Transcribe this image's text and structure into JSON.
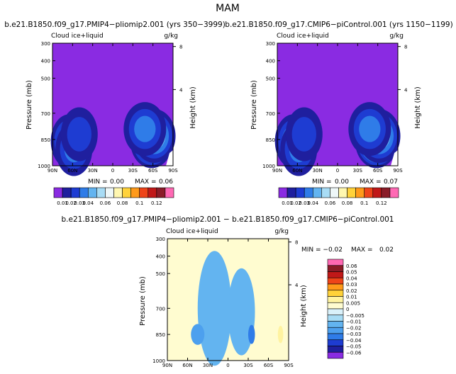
{
  "figure_title": "MAM",
  "chart_data": [
    {
      "type": "heatmap",
      "title": "b.e21.B1850.f09_g17.PMIP4−pliomip2.001  (yrs 350−3999)",
      "left_string": "Cloud ice+liquid",
      "right_string": "g/kg",
      "ylabel": "Pressure (mb)",
      "ylabel_right": "Height (km)",
      "x_tick_labels": [
        "90N",
        "60N",
        "30N",
        "0",
        "30S",
        "60S",
        "90S"
      ],
      "x_tick_values": [
        90,
        60,
        30,
        0,
        -30,
        -60,
        -90
      ],
      "xlim": [
        90,
        -90
      ],
      "y_tick_labels": [
        "300",
        "400",
        "500",
        "700",
        "850",
        "1000"
      ],
      "y_tick_values": [
        300,
        400,
        500,
        700,
        850,
        1000
      ],
      "ylim": [
        300,
        1000
      ],
      "right_tick_labels": [
        "8",
        "4"
      ],
      "right_tick_values": [
        8,
        4
      ],
      "min_label": "MIN =",
      "min_value": "0.00",
      "max_label": "MAX =",
      "max_value": "0.06",
      "blobs": [
        {
          "lat": 65,
          "p": 860,
          "level": 4
        },
        {
          "lat": 58,
          "p": 905,
          "level": 3
        },
        {
          "lat": 50,
          "p": 820,
          "level": 2
        },
        {
          "lat": -58,
          "p": 860,
          "level": 7
        },
        {
          "lat": -62,
          "p": 830,
          "level": 5
        },
        {
          "lat": -48,
          "p": 790,
          "level": 3
        }
      ],
      "colorbar": {
        "colors": [
          "#8a2be2",
          "#1f1f9e",
          "#1e3cd2",
          "#2f7ce8",
          "#63b4f0",
          "#a8dcf5",
          "#eef7f8",
          "#fff7b0",
          "#ffd23a",
          "#ff9a1a",
          "#ee4419",
          "#c01818",
          "#8a1c28",
          "#ff69b4"
        ],
        "labels": [
          "0.01",
          "0.02",
          "0.03",
          "0.04",
          "0.06",
          "0.08",
          "0.1",
          "0.12"
        ],
        "label_colors": [
          0,
          1,
          2,
          3,
          5,
          7,
          9,
          11
        ]
      }
    },
    {
      "type": "heatmap",
      "title": "b.e21.B1850.f09_g17.CMIP6−piControl.001  (yrs 1150−1199)",
      "left_string": "Cloud ice+liquid",
      "right_string": "g/kg",
      "ylabel": "Pressure (mb)",
      "ylabel_right": "Height (km)",
      "x_tick_labels": [
        "90N",
        "60N",
        "30N",
        "0",
        "30S",
        "60S",
        "90S"
      ],
      "x_tick_values": [
        90,
        60,
        30,
        0,
        -30,
        -60,
        -90
      ],
      "xlim": [
        90,
        -90
      ],
      "y_tick_labels": [
        "300",
        "400",
        "500",
        "700",
        "850",
        "1000"
      ],
      "y_tick_values": [
        300,
        400,
        500,
        700,
        850,
        1000
      ],
      "ylim": [
        300,
        1000
      ],
      "right_tick_labels": [
        "8",
        "4"
      ],
      "right_tick_values": [
        8,
        4
      ],
      "min_label": "MIN =",
      "min_value": "0.00",
      "max_label": "MAX =",
      "max_value": "0.07",
      "blobs": [
        {
          "lat": 66,
          "p": 860,
          "level": 4
        },
        {
          "lat": 58,
          "p": 905,
          "level": 3
        },
        {
          "lat": 50,
          "p": 820,
          "level": 2
        },
        {
          "lat": -58,
          "p": 860,
          "level": 8
        },
        {
          "lat": -62,
          "p": 830,
          "level": 5
        },
        {
          "lat": -48,
          "p": 790,
          "level": 3
        }
      ],
      "colorbar": {
        "colors": [
          "#8a2be2",
          "#1f1f9e",
          "#1e3cd2",
          "#2f7ce8",
          "#63b4f0",
          "#a8dcf5",
          "#eef7f8",
          "#fff7b0",
          "#ffd23a",
          "#ff9a1a",
          "#ee4419",
          "#c01818",
          "#8a1c28",
          "#ff69b4"
        ],
        "labels": [
          "0.01",
          "0.02",
          "0.03",
          "0.04",
          "0.06",
          "0.08",
          "0.1",
          "0.12"
        ],
        "label_colors": [
          0,
          1,
          2,
          3,
          5,
          7,
          9,
          11
        ]
      }
    },
    {
      "type": "heatmap",
      "title": "b.e21.B1850.f09_g17.PMIP4−pliomip2.001  −  b.e21.B1850.f09_g17.CMIP6−piControl.001",
      "left_string": "Cloud ice+liquid",
      "right_string": "g/kg",
      "ylabel": "Pressure (mb)",
      "ylabel_right": "Height (km)",
      "x_tick_labels": [
        "90N",
        "60N",
        "30N",
        "0",
        "30S",
        "60S",
        "90S"
      ],
      "x_tick_values": [
        90,
        60,
        30,
        0,
        -30,
        -60,
        -90
      ],
      "xlim": [
        90,
        -90
      ],
      "y_tick_labels": [
        "300",
        "400",
        "500",
        "700",
        "850",
        "1000"
      ],
      "y_tick_values": [
        300,
        400,
        500,
        700,
        850,
        1000
      ],
      "ylim": [
        300,
        1000
      ],
      "right_tick_labels": [
        "8",
        "4"
      ],
      "right_tick_values": [
        8,
        4
      ],
      "min_label": "MIN =",
      "min_value": "−0.02",
      "max_label": "MAX =",
      "max_value": "0.02",
      "diff_regions": [
        {
          "lat": 20,
          "p": 700,
          "level": 5,
          "lat_half": 25,
          "p_half": 330
        },
        {
          "lat": -20,
          "p": 720,
          "level": 5,
          "lat_half": 20,
          "p_half": 250
        },
        {
          "lat": 45,
          "p": 850,
          "level": 4,
          "lat_half": 10,
          "p_half": 60
        },
        {
          "lat": -35,
          "p": 850,
          "level": 3,
          "lat_half": 5,
          "p_half": 55
        },
        {
          "lat": -78,
          "p": 860,
          "level": 8,
          "lat_half": 6,
          "p_half": 90
        },
        {
          "lat": -78,
          "p": 850,
          "level": 9,
          "lat_half": 4,
          "p_half": 50
        },
        {
          "lat": 82,
          "p": 950,
          "level": 8,
          "lat_half": 4,
          "p_half": 40
        }
      ],
      "colorbar": {
        "colors": [
          "#8a2be2",
          "#1f1f9e",
          "#1e3cd2",
          "#2f7ce8",
          "#63b4f0",
          "#a8dcf5",
          "#eef7f8",
          "#fff7b0",
          "#ffd23a",
          "#ff9a1a",
          "#ee4419",
          "#c01818",
          "#8a1c28",
          "#ff69b4"
        ],
        "labels": [
          "−0.06",
          "−0.05",
          "−0.04",
          "−0.03",
          "−0.02",
          "−0.01",
          "−0.005",
          "0",
          "0.005",
          "0.01",
          "0.02",
          "0.03",
          "0.04",
          "0.05",
          "0.06"
        ],
        "diff_colors": [
          "#8a2be2",
          "#1f1f9e",
          "#1e3cd2",
          "#2f7ce8",
          "#4da0ee",
          "#63b4f0",
          "#a8dcf5",
          "#daf1fa",
          "#fffcd0",
          "#fff3a0",
          "#ffd23a",
          "#ff9a1a",
          "#ee4419",
          "#c01818",
          "#8a1c28",
          "#ff69b4"
        ]
      }
    }
  ]
}
